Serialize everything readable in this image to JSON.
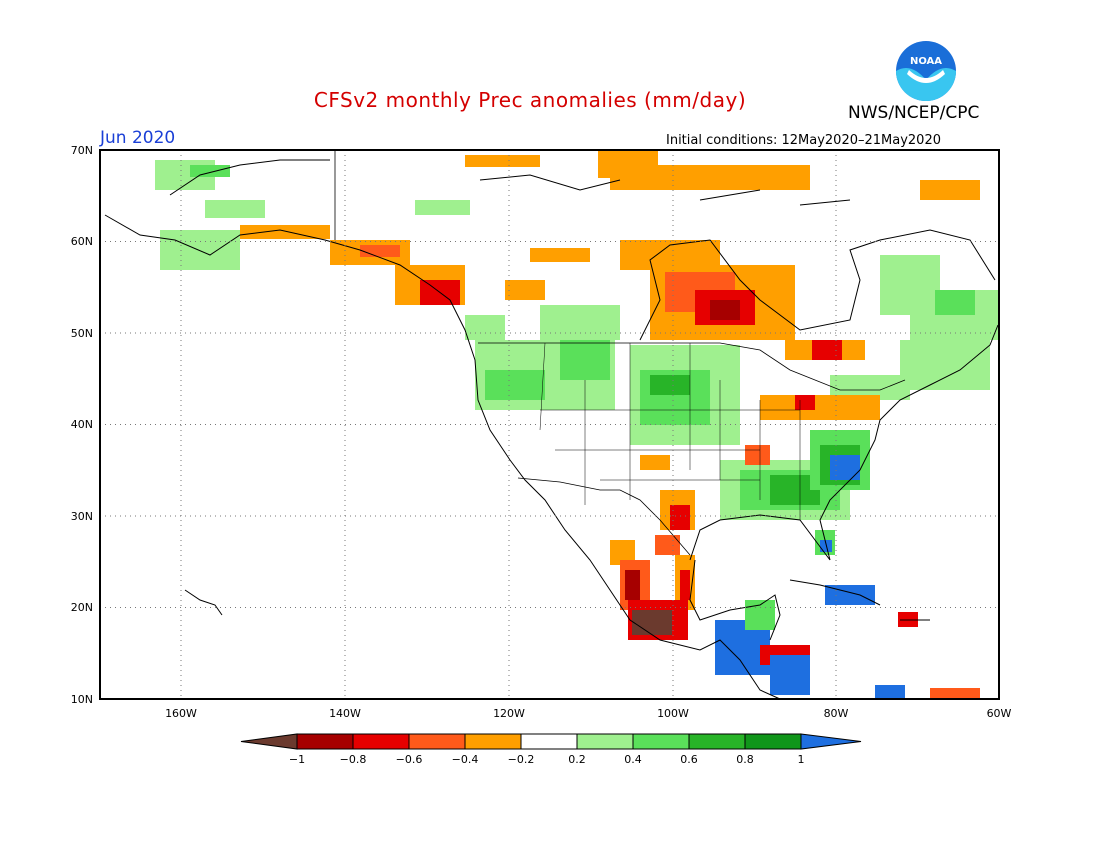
{
  "title": "CFSv2 monthly Prec anomalies (mm/day)",
  "agency": "NWS/NCEP/CPC",
  "logo_text": "NOAA",
  "month": "Jun 2020",
  "initial_conditions": "Initial conditions: 12May2020–21May2020",
  "colors": {
    "title": "#d40000",
    "month": "#1a3fd6",
    "grid": "#777777"
  },
  "lat_labels": [
    "70N",
    "60N",
    "50N",
    "40N",
    "30N",
    "20N",
    "10N"
  ],
  "lon_labels": [
    "160W",
    "140W",
    "120W",
    "100W",
    "80W",
    "60W"
  ],
  "colorbar": {
    "labels": [
      "−1",
      "−0.8",
      "−0.6",
      "−0.4",
      "−0.2",
      "0.2",
      "0.4",
      "0.6",
      "0.8",
      "1"
    ],
    "colors": [
      "#6b3a2e",
      "#a60000",
      "#e60000",
      "#ff5a1a",
      "#ff9f00",
      "#ffffff",
      "#9ff08f",
      "#5ae05a",
      "#28b428",
      "#10961a",
      "#1e6fe0"
    ]
  }
}
